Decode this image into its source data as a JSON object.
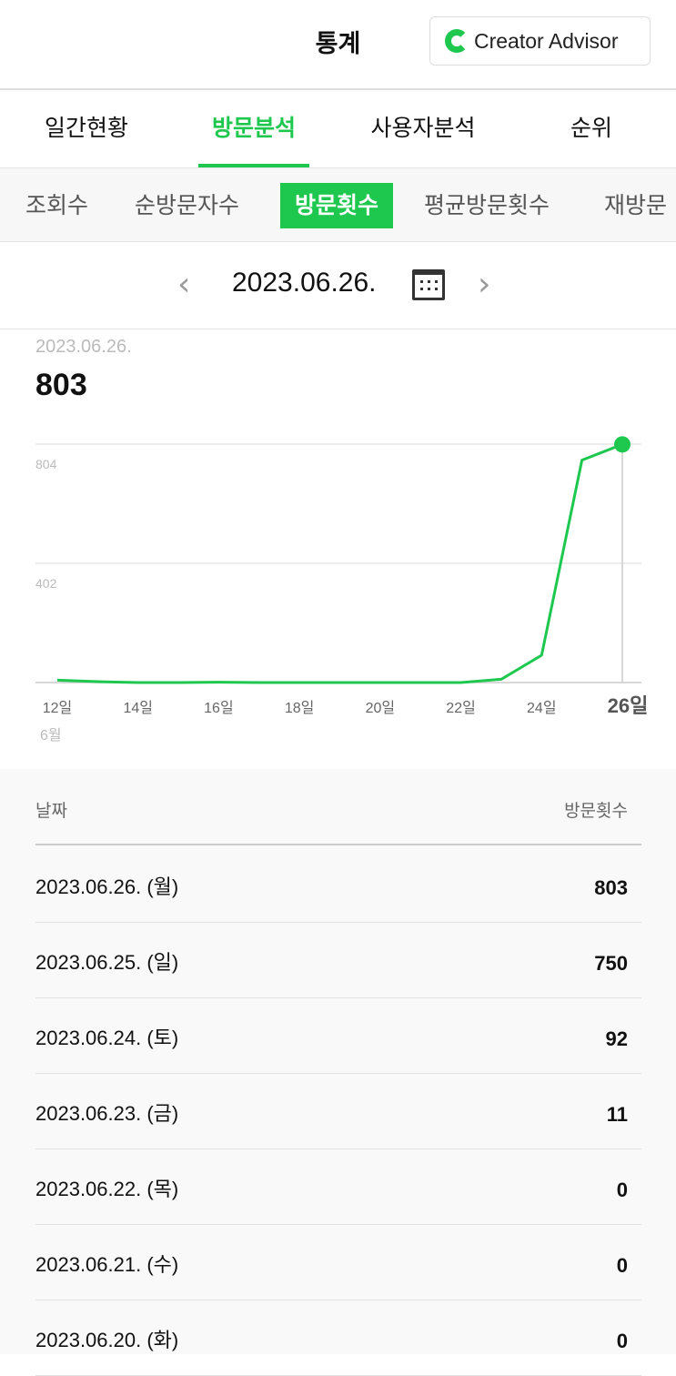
{
  "header": {
    "title": "통계",
    "brand": "Creator Advisor"
  },
  "tabs": [
    {
      "label": "일간현황",
      "active": false
    },
    {
      "label": "방문분석",
      "active": true
    },
    {
      "label": "사용자분석",
      "active": false
    },
    {
      "label": "순위",
      "active": false
    }
  ],
  "subtabs": [
    {
      "label": "조회수"
    },
    {
      "label": "순방문자수"
    },
    {
      "label": "방문횟수",
      "active": true
    },
    {
      "label": "평균방문횟수"
    },
    {
      "label": "재방문"
    }
  ],
  "date_nav": {
    "date": "2023.06.26.",
    "prev_icon": "chevron-left",
    "next_icon": "chevron-right",
    "calendar_icon": "calendar"
  },
  "summary": {
    "date": "2023.06.26.",
    "value": "803"
  },
  "colors": {
    "accent": "#1ec84f"
  },
  "chart_data": {
    "type": "line",
    "x": [
      "12",
      "13",
      "14",
      "15",
      "16",
      "17",
      "18",
      "19",
      "20",
      "21",
      "22",
      "23",
      "24",
      "25",
      "26"
    ],
    "values": [
      8,
      3,
      0,
      0,
      1,
      0,
      0,
      0,
      0,
      0,
      0,
      11,
      92,
      750,
      803
    ],
    "xtick_labels": [
      "12일",
      "14일",
      "16일",
      "18일",
      "20일",
      "22일",
      "24일",
      "26일"
    ],
    "month_label": "6월",
    "yticks": [
      "804",
      "402"
    ],
    "ylim": [
      0,
      804
    ],
    "grid": true
  },
  "table": {
    "headers": {
      "date": "날짜",
      "value": "방문횟수"
    },
    "rows": [
      {
        "date": "2023.06.26. (월)",
        "value": "803"
      },
      {
        "date": "2023.06.25. (일)",
        "value": "750"
      },
      {
        "date": "2023.06.24. (토)",
        "value": "92"
      },
      {
        "date": "2023.06.23. (금)",
        "value": "11"
      },
      {
        "date": "2023.06.22. (목)",
        "value": "0"
      },
      {
        "date": "2023.06.21. (수)",
        "value": "0"
      },
      {
        "date": "2023.06.20. (화)",
        "value": "0"
      }
    ]
  }
}
